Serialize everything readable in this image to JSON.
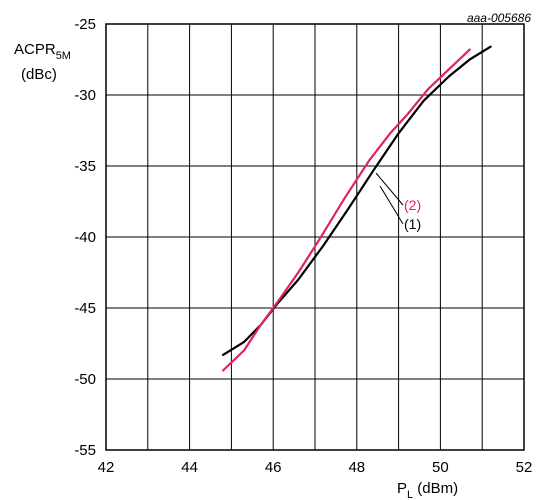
{
  "chart_data": {
    "type": "line",
    "figure_code": "aaa-005686",
    "ylabel": {
      "main": "ACPR",
      "sub": "5M",
      "unit": "(dBc)"
    },
    "xlabel": {
      "main": "P",
      "sub": "L",
      "unit": " (dBm)"
    },
    "xlim": [
      42,
      52
    ],
    "ylim": [
      -55,
      -25
    ],
    "x_ticks": [
      42,
      44,
      46,
      48,
      50,
      52
    ],
    "x_tick_labels": [
      "42",
      "44",
      "46",
      "48",
      "50",
      "52"
    ],
    "x_minor_step": 1,
    "y_ticks": [
      -55,
      -50,
      -45,
      -40,
      -35,
      -30,
      -25
    ],
    "y_tick_labels": [
      "-55",
      "-50",
      "-45",
      "-40",
      "-35",
      "-30",
      "-25"
    ],
    "grid": true,
    "series": [
      {
        "name": "(1)",
        "color": "#000000",
        "x": [
          44.8,
          45.3,
          45.7,
          46.1,
          46.6,
          47.2,
          47.8,
          48.4,
          49.0,
          49.6,
          50.2,
          50.7,
          51.2
        ],
        "y": [
          -48.3,
          -47.4,
          -46.2,
          -44.7,
          -43.0,
          -40.6,
          -38.0,
          -35.3,
          -32.7,
          -30.4,
          -28.7,
          -27.5,
          -26.6
        ]
      },
      {
        "name": "(2)",
        "color": "#e0206a",
        "x": [
          44.8,
          45.3,
          45.7,
          46.1,
          46.6,
          47.1,
          47.7,
          48.3,
          48.8,
          49.2,
          49.7,
          50.2,
          50.7
        ],
        "y": [
          -49.4,
          -48.0,
          -46.2,
          -44.6,
          -42.5,
          -40.2,
          -37.3,
          -34.6,
          -32.7,
          -31.4,
          -29.6,
          -28.2,
          -26.8
        ]
      }
    ],
    "annotations": [
      {
        "text": "(2)",
        "series": 1,
        "color": "#e0206a"
      },
      {
        "text": "(1)",
        "series": 0,
        "color": "#000000"
      }
    ]
  }
}
